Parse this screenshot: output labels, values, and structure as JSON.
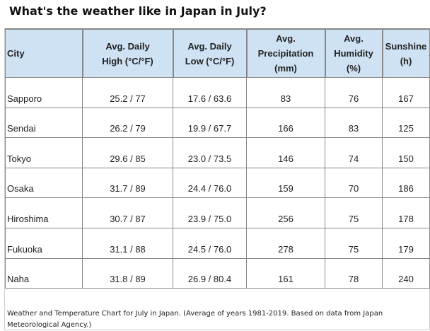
{
  "title": "What's the weather like in Japan in July?",
  "headers": [
    [
      "City",
      ""
    ],
    [
      "Avg. Daily",
      "High (°C/°F)"
    ],
    [
      "Avg. Daily",
      "Low (°C/°F)"
    ],
    [
      "Avg. Precipitation",
      "(mm)"
    ],
    [
      "Avg.",
      "Humidity",
      "(%)"
    ],
    [
      "Sunshine",
      "(h)"
    ]
  ],
  "rows": [
    [
      "Sapporo",
      "25.2 / 77",
      "17.6 / 63.6",
      "83",
      "76",
      "167"
    ],
    [
      "Sendai",
      "26.2 / 79",
      "19.9 / 67.7",
      "166",
      "83",
      "125"
    ],
    [
      "Tokyo",
      "29.6 / 85",
      "23.0 / 73.5",
      "146",
      "74",
      "150"
    ],
    [
      "Osaka",
      "31.7 / 89",
      "24.4 / 76.0",
      "159",
      "70",
      "186"
    ],
    [
      "Hiroshima",
      "30.7 / 87",
      "23.9 / 75.0",
      "256",
      "75",
      "178"
    ],
    [
      "Fukuoka",
      "31.1 / 88",
      "24.5 / 76.0",
      "278",
      "75",
      "179"
    ],
    [
      "Naha",
      "31.8 / 89",
      "26.9 / 80.4",
      "161",
      "78",
      "240"
    ]
  ],
  "caption": "Weather and Temperature Chart for July in Japan. (Average of years 1981-2019. Based on data from Japan Meteorological Agency.)",
  "colors": {
    "header_bg": "#cfe2f3"
  }
}
